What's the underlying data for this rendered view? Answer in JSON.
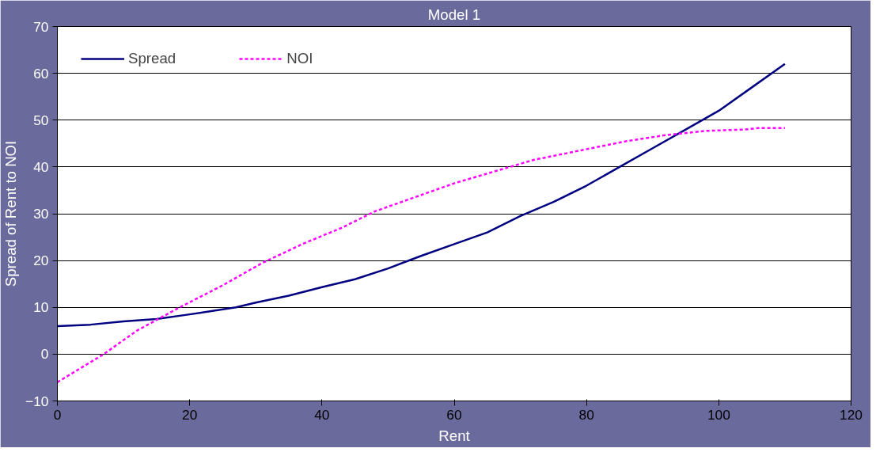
{
  "chart_data": {
    "type": "line",
    "title": "Model 1",
    "xlabel": "Rent",
    "ylabel": "Spread of Rent to NOI",
    "xlim": [
      0,
      120
    ],
    "xticks": [
      0,
      20,
      40,
      60,
      80,
      100,
      120
    ],
    "ylim": [
      -10,
      70
    ],
    "yticks": [
      -10,
      0,
      10,
      20,
      30,
      40,
      50,
      60,
      70
    ],
    "grid": "y",
    "legend": "top left",
    "marker": "none",
    "series": [
      {
        "name": "Spread",
        "color": "#000080",
        "line_style": "solid",
        "x": [
          0,
          5,
          10,
          15,
          20,
          27,
          30,
          35,
          40,
          45,
          50,
          55,
          60,
          65,
          70,
          75,
          80,
          85,
          90,
          95,
          100,
          105,
          110
        ],
        "values": [
          6,
          6.3,
          7,
          7.5,
          8.5,
          10,
          11,
          12.5,
          14.3,
          16,
          18.3,
          21,
          23.5,
          26,
          29.5,
          32.5,
          36,
          40,
          44,
          48,
          52,
          57,
          62
        ]
      },
      {
        "name": "NOI",
        "color": "#ff00ff",
        "line_style": "dashed",
        "x": [
          0,
          7,
          12,
          18.5,
          25,
          31,
          37,
          43,
          48,
          54,
          60,
          66,
          72,
          79,
          86,
          92,
          98,
          104,
          106,
          110
        ],
        "values": [
          -6,
          0,
          5,
          10,
          14.7,
          19.5,
          23.5,
          27,
          30.5,
          33.5,
          36.5,
          39,
          41.5,
          43.5,
          45.5,
          46.8,
          47.7,
          48,
          48.3,
          48.3
        ]
      }
    ]
  }
}
